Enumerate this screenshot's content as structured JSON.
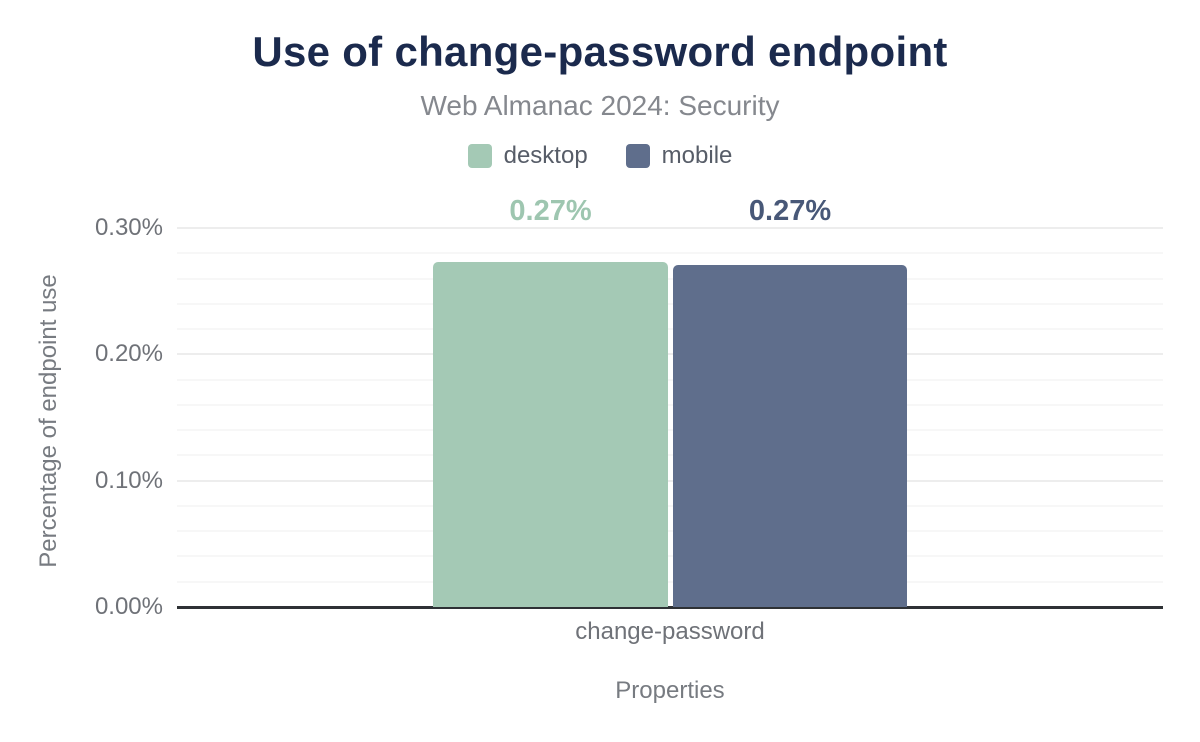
{
  "title": "Use of change-password endpoint",
  "subtitle": "Web Almanac 2024: Security",
  "legend": {
    "items": [
      {
        "label": "desktop",
        "color": "#a4c9b5"
      },
      {
        "label": "mobile",
        "color": "#5f6e8c"
      }
    ]
  },
  "chart_data": {
    "type": "bar",
    "title": "Use of change-password endpoint",
    "subtitle": "Web Almanac 2024: Security",
    "categories": [
      "change-password"
    ],
    "series": [
      {
        "name": "desktop",
        "values": [
          0.27
        ],
        "plot_values": [
          0.273
        ],
        "data_labels": [
          "0.27%"
        ],
        "color": "#a4c9b5",
        "label_color": "#9ec6b0"
      },
      {
        "name": "mobile",
        "values": [
          0.27
        ],
        "plot_values": [
          0.271
        ],
        "data_labels": [
          "0.27%"
        ],
        "color": "#5f6e8c",
        "label_color": "#485878"
      }
    ],
    "xlabel": "Properties",
    "ylabel": "Percentage of endpoint use",
    "ylim": [
      0,
      0.3
    ],
    "unit": "%",
    "yticks": [
      {
        "value": 0.0,
        "label": "0.00%"
      },
      {
        "value": 0.1,
        "label": "0.10%"
      },
      {
        "value": 0.2,
        "label": "0.20%"
      },
      {
        "value": 0.3,
        "label": "0.30%"
      }
    ],
    "minor_grid_step": 0.02,
    "grid": true,
    "legend_position": "top"
  }
}
